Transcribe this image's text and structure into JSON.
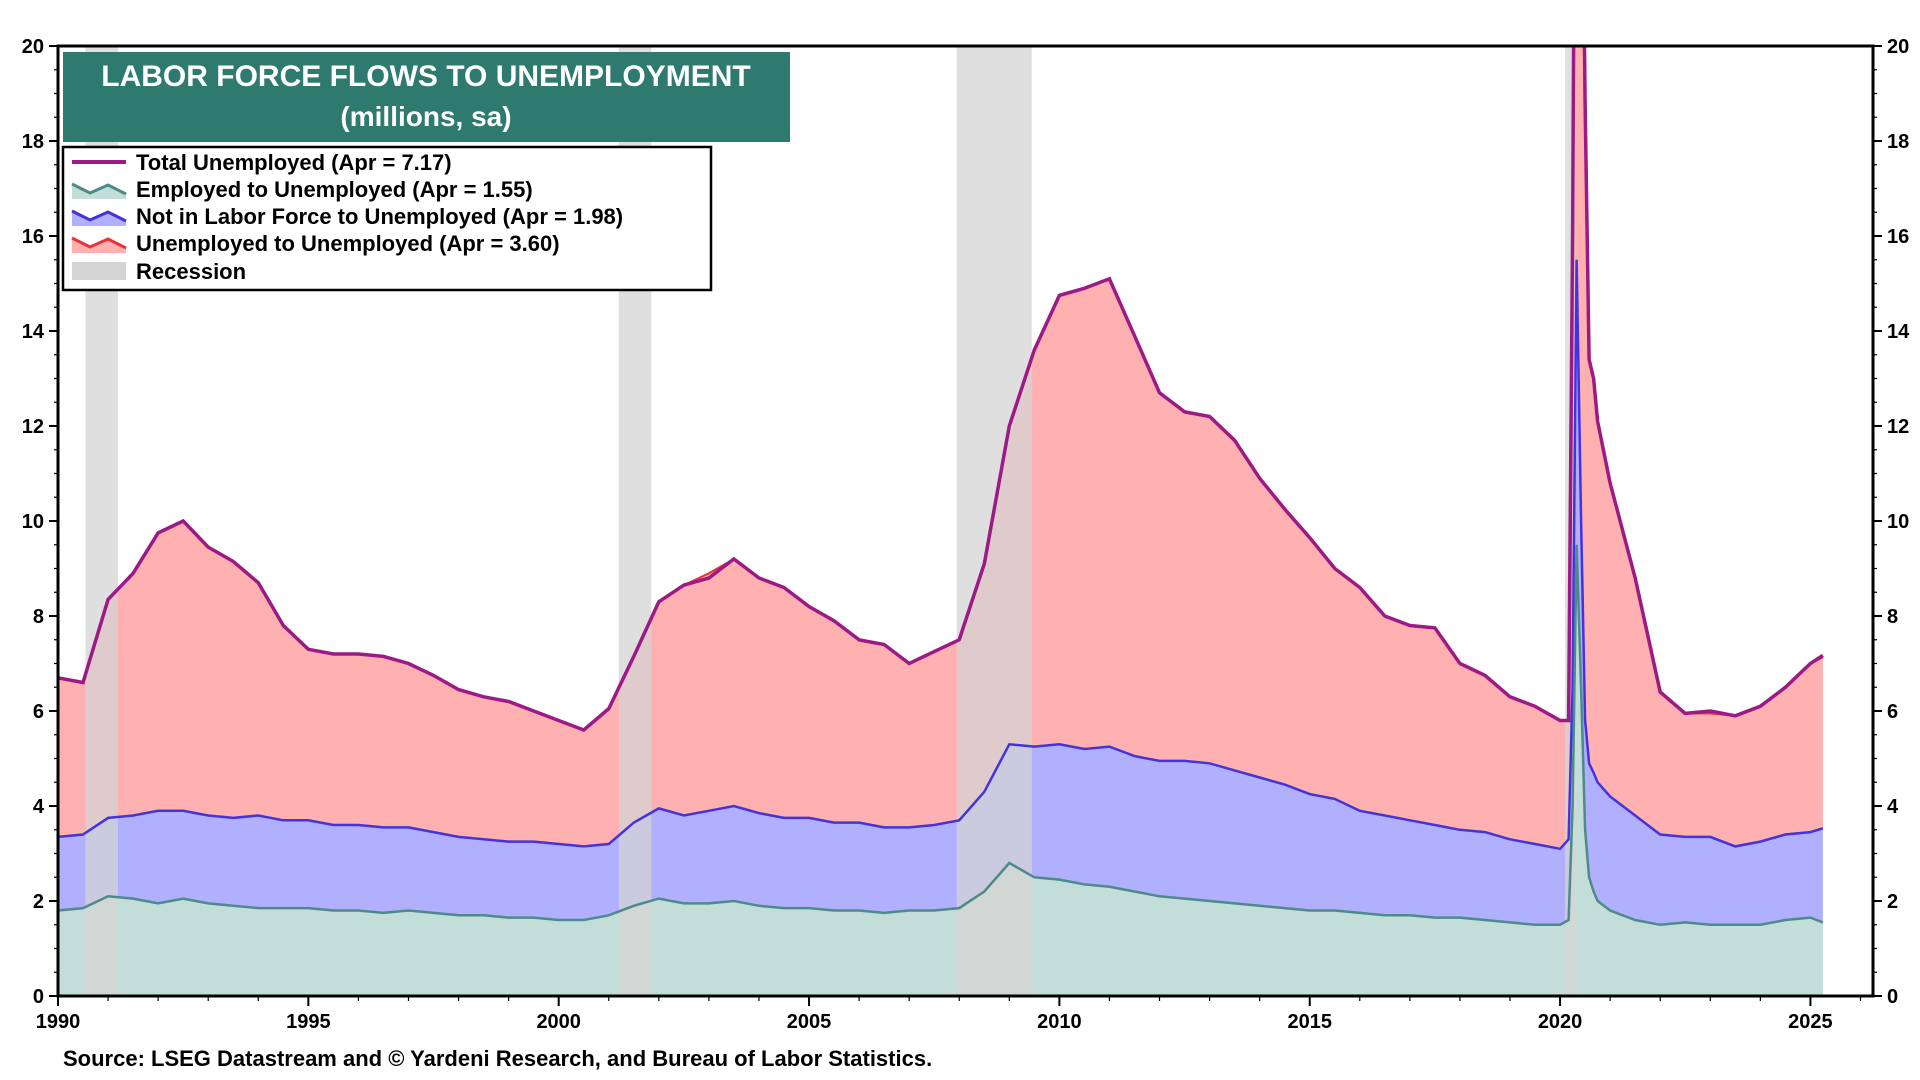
{
  "chart_data": {
    "type": "area",
    "title": "LABOR FORCE FLOWS TO UNEMPLOYMENT",
    "subtitle": "(millions, sa)",
    "source": "Source: LSEG Datastream and © Yardeni Research, and Bureau of Labor Statistics.",
    "xlim": [
      1990,
      2026.25
    ],
    "ylim": [
      0,
      20
    ],
    "x_ticks": [
      "1990",
      "1995",
      "2000",
      "2005",
      "2010",
      "2015",
      "2020",
      "2025"
    ],
    "y_ticks": [
      "0",
      "2",
      "4",
      "6",
      "8",
      "10",
      "12",
      "14",
      "16",
      "18",
      "20"
    ],
    "grid": false,
    "legend_position": "top-left",
    "colors": {
      "total": "#9b1a85",
      "emp_line": "#4d8a8a",
      "emp_fill": "#c3ded8",
      "nilf_line": "#4433dd",
      "nilf_fill": "#b0b0ff",
      "unemp_line": "#e8333a",
      "unemp_fill": "#ffb0b0",
      "recession": "#d4d4d4",
      "title_bg": "#2e7a6e"
    },
    "legend": [
      {
        "key": "total",
        "label": "Total Unemployed (Apr = 7.17)"
      },
      {
        "key": "emp",
        "label": "Employed to Unemployed (Apr = 1.55)"
      },
      {
        "key": "nilf",
        "label": "Not in Labor Force to Unemployed (Apr = 1.98)"
      },
      {
        "key": "unemp",
        "label": "Unemployed to Unemployed (Apr = 3.60)"
      },
      {
        "key": "recession",
        "label": "Recession"
      }
    ],
    "recessions": [
      [
        1990.55,
        1991.2
      ],
      [
        2001.2,
        2001.85
      ],
      [
        2007.95,
        2009.45
      ],
      [
        2020.1,
        2020.3
      ]
    ],
    "x": [
      1990.0,
      1990.5,
      1991.0,
      1991.5,
      1992.0,
      1992.5,
      1993.0,
      1993.5,
      1994.0,
      1994.5,
      1995.0,
      1995.5,
      1996.0,
      1996.5,
      1997.0,
      1997.5,
      1998.0,
      1998.5,
      1999.0,
      1999.5,
      2000.0,
      2000.5,
      2001.0,
      2001.5,
      2002.0,
      2002.5,
      2003.0,
      2003.5,
      2004.0,
      2004.5,
      2005.0,
      2005.5,
      2006.0,
      2006.5,
      2007.0,
      2007.5,
      2008.0,
      2008.5,
      2009.0,
      2009.5,
      2010.0,
      2010.5,
      2011.0,
      2011.5,
      2012.0,
      2012.5,
      2013.0,
      2013.5,
      2014.0,
      2014.5,
      2015.0,
      2015.5,
      2016.0,
      2016.5,
      2017.0,
      2017.5,
      2018.0,
      2018.5,
      2019.0,
      2019.5,
      2020.0,
      2020.17,
      2020.25,
      2020.33,
      2020.42,
      2020.5,
      2020.58,
      2020.67,
      2020.75,
      2021.0,
      2021.5,
      2022.0,
      2022.5,
      2023.0,
      2023.5,
      2024.0,
      2024.5,
      2025.0,
      2025.25
    ],
    "series": [
      {
        "name": "Employed to Unemployed",
        "key": "emp",
        "values": [
          1.8,
          1.85,
          2.1,
          2.05,
          1.95,
          2.05,
          1.95,
          1.9,
          1.85,
          1.85,
          1.85,
          1.8,
          1.8,
          1.75,
          1.8,
          1.75,
          1.7,
          1.7,
          1.65,
          1.65,
          1.6,
          1.6,
          1.7,
          1.9,
          2.05,
          1.95,
          1.95,
          2.0,
          1.9,
          1.85,
          1.85,
          1.8,
          1.8,
          1.75,
          1.8,
          1.8,
          1.85,
          2.2,
          2.8,
          2.5,
          2.45,
          2.35,
          2.3,
          2.2,
          2.1,
          2.05,
          2.0,
          1.95,
          1.9,
          1.85,
          1.8,
          1.8,
          1.75,
          1.7,
          1.7,
          1.65,
          1.65,
          1.6,
          1.55,
          1.5,
          1.5,
          1.6,
          4.0,
          9.5,
          6.5,
          3.5,
          2.5,
          2.2,
          2.0,
          1.8,
          1.6,
          1.5,
          1.55,
          1.5,
          1.5,
          1.5,
          1.6,
          1.65,
          1.55
        ]
      },
      {
        "name": "Not in Labor Force to Unemployed",
        "key": "nilf",
        "values": [
          1.55,
          1.55,
          1.65,
          1.75,
          1.95,
          1.85,
          1.85,
          1.85,
          1.95,
          1.85,
          1.85,
          1.8,
          1.8,
          1.8,
          1.75,
          1.7,
          1.65,
          1.6,
          1.6,
          1.6,
          1.6,
          1.55,
          1.5,
          1.75,
          1.9,
          1.85,
          1.95,
          2.0,
          1.95,
          1.9,
          1.9,
          1.85,
          1.85,
          1.8,
          1.75,
          1.8,
          1.85,
          2.1,
          2.5,
          2.75,
          2.85,
          2.85,
          2.95,
          2.85,
          2.85,
          2.9,
          2.9,
          2.8,
          2.7,
          2.6,
          2.45,
          2.35,
          2.15,
          2.1,
          2.0,
          1.95,
          1.85,
          1.85,
          1.75,
          1.7,
          1.6,
          1.7,
          2.5,
          6.0,
          3.5,
          2.3,
          2.4,
          2.5,
          2.5,
          2.4,
          2.2,
          1.9,
          1.8,
          1.85,
          1.65,
          1.75,
          1.8,
          1.8,
          1.98
        ]
      },
      {
        "name": "Unemployed to Unemployed",
        "key": "unemp",
        "values": [
          3.35,
          3.2,
          4.6,
          5.1,
          5.85,
          6.1,
          5.65,
          5.4,
          4.9,
          4.1,
          3.6,
          3.6,
          3.6,
          3.6,
          3.45,
          3.3,
          3.1,
          3.0,
          2.95,
          2.75,
          2.6,
          2.45,
          2.85,
          3.5,
          4.35,
          4.85,
          5.0,
          5.2,
          4.95,
          4.85,
          4.45,
          4.25,
          3.85,
          3.85,
          3.45,
          3.65,
          3.8,
          4.8,
          6.7,
          8.35,
          9.45,
          9.7,
          9.85,
          8.85,
          7.75,
          7.35,
          7.3,
          6.95,
          6.3,
          5.8,
          5.4,
          4.85,
          4.7,
          4.2,
          4.1,
          4.15,
          3.5,
          3.3,
          3.0,
          2.9,
          2.7,
          2.5,
          9.5,
          16.5,
          16.5,
          13.0,
          8.5,
          8.3,
          7.6,
          6.6,
          5.0,
          3.0,
          2.6,
          2.6,
          2.75,
          2.85,
          3.1,
          3.55,
          3.6
        ]
      },
      {
        "name": "Total Unemployed",
        "key": "total",
        "values": [
          6.7,
          6.6,
          8.35,
          8.9,
          9.75,
          10.0,
          9.45,
          9.15,
          8.7,
          7.8,
          7.3,
          7.2,
          7.2,
          7.15,
          7.0,
          6.75,
          6.45,
          6.3,
          6.2,
          6.0,
          5.8,
          5.6,
          6.05,
          7.15,
          8.3,
          8.65,
          8.8,
          9.2,
          8.8,
          8.6,
          8.2,
          7.9,
          7.5,
          7.4,
          7.0,
          7.25,
          7.5,
          9.1,
          12.0,
          13.6,
          14.75,
          14.9,
          15.1,
          13.9,
          12.7,
          12.3,
          12.2,
          11.7,
          10.9,
          10.25,
          9.65,
          9.0,
          8.6,
          8.0,
          7.8,
          7.75,
          7.0,
          6.75,
          6.3,
          6.1,
          5.8,
          5.8,
          16.0,
          32.0,
          26.5,
          18.8,
          13.4,
          13.0,
          12.1,
          10.8,
          8.8,
          6.4,
          5.95,
          6.0,
          5.9,
          6.1,
          6.5,
          7.0,
          7.17
        ]
      }
    ]
  }
}
